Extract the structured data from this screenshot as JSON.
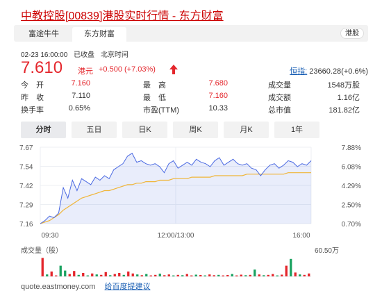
{
  "title": "中教控股[00839]港股实时行情 - 东方财富",
  "source_tabs": [
    {
      "label": "富途牛牛"
    },
    {
      "label": "东方财富"
    }
  ],
  "market_badge": "港股",
  "quote": {
    "datetime": "02-23 16:00:00",
    "status": "已收盘",
    "timezone": "北京时间",
    "price": "7.610",
    "currency": "港元",
    "change": "+0.500 (+7.03%)",
    "index_name": "恒指:",
    "index_value": "23660.28(+0.6%)"
  },
  "stats": [
    [
      {
        "label": "今　开",
        "value": "7.160",
        "color": "red"
      },
      {
        "label": "最　高",
        "value": "7.680",
        "color": "red"
      },
      {
        "label": "成交量",
        "value": "1548万股",
        "color": "black"
      }
    ],
    [
      {
        "label": "昨　收",
        "value": "7.110",
        "color": "black"
      },
      {
        "label": "最　低",
        "value": "7.160",
        "color": "red"
      },
      {
        "label": "成交额",
        "value": "1.16亿",
        "color": "black"
      }
    ],
    [
      {
        "label": "换手率",
        "value": "0.65%",
        "color": "black"
      },
      {
        "label": "市盈(TTM)",
        "value": "10.33",
        "color": "black"
      },
      {
        "label": "总市值",
        "value": "181.82亿",
        "color": "black"
      }
    ]
  ],
  "period_tabs": [
    "分时",
    "五日",
    "日K",
    "周K",
    "月K",
    "1年"
  ],
  "active_period": "分时",
  "colors": {
    "up": "#e4262c",
    "down": "#1aa260",
    "price_line": "#4a69e2",
    "avg_line": "#f0b537",
    "link": "#1a5fb4"
  },
  "chart_data": {
    "type": "line",
    "y_left_ticks": [
      "7.67",
      "7.54",
      "7.42",
      "7.29",
      "7.16"
    ],
    "y_right_ticks": [
      "7.88%",
      "6.08%",
      "4.29%",
      "2.50%",
      "0.70%"
    ],
    "x_ticks": [
      "09:30",
      "12:00/13:00",
      "16:00"
    ],
    "ylim": [
      7.16,
      7.67
    ],
    "series": [
      {
        "values": [
          7.16,
          7.18,
          7.21,
          7.2,
          7.23,
          7.4,
          7.33,
          7.45,
          7.38,
          7.46,
          7.44,
          7.42,
          7.47,
          7.45,
          7.48,
          7.46,
          7.52,
          7.54,
          7.56,
          7.61,
          7.63,
          7.57,
          7.58,
          7.56,
          7.55,
          7.56,
          7.54,
          7.5,
          7.56,
          7.58,
          7.53,
          7.55,
          7.57,
          7.55,
          7.59,
          7.57,
          7.56,
          7.54,
          7.58,
          7.6,
          7.55,
          7.57,
          7.59,
          7.56,
          7.55,
          7.56,
          7.53,
          7.52,
          7.48,
          7.52,
          7.55,
          7.56,
          7.53,
          7.55,
          7.58,
          7.57,
          7.54,
          7.56,
          7.55,
          7.58
        ]
      },
      {
        "values": [
          7.16,
          7.17,
          7.18,
          7.2,
          7.22,
          7.25,
          7.27,
          7.29,
          7.31,
          7.33,
          7.34,
          7.35,
          7.36,
          7.37,
          7.38,
          7.38,
          7.39,
          7.4,
          7.41,
          7.42,
          7.42,
          7.43,
          7.43,
          7.44,
          7.44,
          7.44,
          7.45,
          7.45,
          7.45,
          7.46,
          7.46,
          7.46,
          7.46,
          7.47,
          7.47,
          7.47,
          7.47,
          7.47,
          7.48,
          7.48,
          7.48,
          7.48,
          7.48,
          7.48,
          7.48,
          7.49,
          7.49,
          7.49,
          7.49,
          7.49,
          7.49,
          7.49,
          7.49,
          7.49,
          7.5,
          7.5,
          7.5,
          7.5,
          7.5,
          7.5
        ]
      }
    ],
    "volume_label": "成交量（股）",
    "volume_max_label": "60.50万",
    "volume": [
      {
        "v": 0.95,
        "dir": "up"
      },
      {
        "v": 0.1,
        "dir": "down"
      },
      {
        "v": 0.25,
        "dir": "up"
      },
      {
        "v": 0.05,
        "dir": "up"
      },
      {
        "v": 0.55,
        "dir": "down"
      },
      {
        "v": 0.3,
        "dir": "down"
      },
      {
        "v": 0.12,
        "dir": "up"
      },
      {
        "v": 0.28,
        "dir": "up"
      },
      {
        "v": 0.08,
        "dir": "down"
      },
      {
        "v": 0.18,
        "dir": "up"
      },
      {
        "v": 0.05,
        "dir": "down"
      },
      {
        "v": 0.15,
        "dir": "up"
      },
      {
        "v": 0.1,
        "dir": "down"
      },
      {
        "v": 0.08,
        "dir": "up"
      },
      {
        "v": 0.22,
        "dir": "up"
      },
      {
        "v": 0.06,
        "dir": "down"
      },
      {
        "v": 0.12,
        "dir": "up"
      },
      {
        "v": 0.18,
        "dir": "up"
      },
      {
        "v": 0.08,
        "dir": "down"
      },
      {
        "v": 0.25,
        "dir": "up"
      },
      {
        "v": 0.15,
        "dir": "up"
      },
      {
        "v": 0.1,
        "dir": "down"
      },
      {
        "v": 0.06,
        "dir": "up"
      },
      {
        "v": 0.12,
        "dir": "down"
      },
      {
        "v": 0.05,
        "dir": "up"
      },
      {
        "v": 0.08,
        "dir": "up"
      },
      {
        "v": 0.14,
        "dir": "down"
      },
      {
        "v": 0.06,
        "dir": "up"
      },
      {
        "v": 0.1,
        "dir": "up"
      },
      {
        "v": 0.05,
        "dir": "down"
      },
      {
        "v": 0.08,
        "dir": "up"
      },
      {
        "v": 0.06,
        "dir": "down"
      },
      {
        "v": 0.12,
        "dir": "up"
      },
      {
        "v": 0.05,
        "dir": "up"
      },
      {
        "v": 0.09,
        "dir": "down"
      },
      {
        "v": 0.07,
        "dir": "up"
      },
      {
        "v": 0.05,
        "dir": "down"
      },
      {
        "v": 0.1,
        "dir": "up"
      },
      {
        "v": 0.06,
        "dir": "up"
      },
      {
        "v": 0.08,
        "dir": "down"
      },
      {
        "v": 0.05,
        "dir": "up"
      },
      {
        "v": 0.07,
        "dir": "up"
      },
      {
        "v": 0.12,
        "dir": "down"
      },
      {
        "v": 0.05,
        "dir": "up"
      },
      {
        "v": 0.09,
        "dir": "up"
      },
      {
        "v": 0.06,
        "dir": "down"
      },
      {
        "v": 0.08,
        "dir": "up"
      },
      {
        "v": 0.35,
        "dir": "down"
      },
      {
        "v": 0.1,
        "dir": "up"
      },
      {
        "v": 0.06,
        "dir": "down"
      },
      {
        "v": 0.08,
        "dir": "up"
      },
      {
        "v": 0.12,
        "dir": "up"
      },
      {
        "v": 0.05,
        "dir": "down"
      },
      {
        "v": 0.09,
        "dir": "up"
      },
      {
        "v": 0.55,
        "dir": "up"
      },
      {
        "v": 0.9,
        "dir": "down"
      },
      {
        "v": 0.2,
        "dir": "up"
      },
      {
        "v": 0.1,
        "dir": "down"
      },
      {
        "v": 0.08,
        "dir": "up"
      },
      {
        "v": 0.15,
        "dir": "up"
      }
    ]
  },
  "footer": {
    "source": "quote.eastmoney.com",
    "feedback": "给百度提建议"
  }
}
